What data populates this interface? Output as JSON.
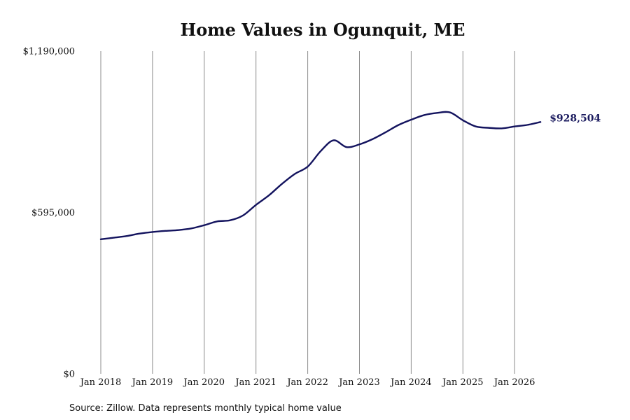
{
  "chart_data": {
    "type": "line",
    "title": "Home Values in Ogunquit, ME",
    "xlabel": "",
    "ylabel": "",
    "ylim": [
      0,
      1190000
    ],
    "yticks": [
      {
        "value": 0,
        "label": "$0"
      },
      {
        "value": 595000,
        "label": "$595,000"
      },
      {
        "value": 1190000,
        "label": "$1,190,000"
      }
    ],
    "xticks": [
      {
        "value": "2018-01",
        "label": "Jan 2018"
      },
      {
        "value": "2019-01",
        "label": "Jan 2019"
      },
      {
        "value": "2020-01",
        "label": "Jan 2020"
      },
      {
        "value": "2021-01",
        "label": "Jan 2021"
      },
      {
        "value": "2022-01",
        "label": "Jan 2022"
      },
      {
        "value": "2023-01",
        "label": "Jan 2023"
      },
      {
        "value": "2024-01",
        "label": "Jan 2024"
      },
      {
        "value": "2025-01",
        "label": "Jan 2025"
      },
      {
        "value": "2026-01",
        "label": "Jan 2026"
      }
    ],
    "grid": "vertical",
    "series": [
      {
        "color": "#13135e",
        "points": [
          [
            "2018-01",
            496000
          ],
          [
            "2018-04",
            502000
          ],
          [
            "2018-07",
            508000
          ],
          [
            "2018-10",
            517000
          ],
          [
            "2019-01",
            523000
          ],
          [
            "2019-04",
            527000
          ],
          [
            "2019-07",
            530000
          ],
          [
            "2019-10",
            536000
          ],
          [
            "2020-01",
            548000
          ],
          [
            "2020-04",
            562000
          ],
          [
            "2020-07",
            566000
          ],
          [
            "2020-10",
            584000
          ],
          [
            "2021-01",
            623000
          ],
          [
            "2021-04",
            658000
          ],
          [
            "2021-07",
            700000
          ],
          [
            "2021-10",
            737000
          ],
          [
            "2022-01",
            764000
          ],
          [
            "2022-04",
            821000
          ],
          [
            "2022-07",
            861000
          ],
          [
            "2022-10",
            836000
          ],
          [
            "2023-01",
            846000
          ],
          [
            "2023-04",
            865000
          ],
          [
            "2023-07",
            890000
          ],
          [
            "2023-10",
            917000
          ],
          [
            "2024-01",
            937000
          ],
          [
            "2024-04",
            954000
          ],
          [
            "2024-07",
            962000
          ],
          [
            "2024-10",
            964000
          ],
          [
            "2025-01",
            935000
          ],
          [
            "2025-04",
            912000
          ],
          [
            "2025-07",
            907000
          ],
          [
            "2025-10",
            905000
          ],
          [
            "2026-01",
            912000
          ],
          [
            "2026-04",
            918000
          ],
          [
            "2026-07",
            928504
          ]
        ]
      }
    ],
    "end_label": "$928,504"
  },
  "footer": {
    "source": "Source: Zillow. Data represents monthly typical home value"
  }
}
